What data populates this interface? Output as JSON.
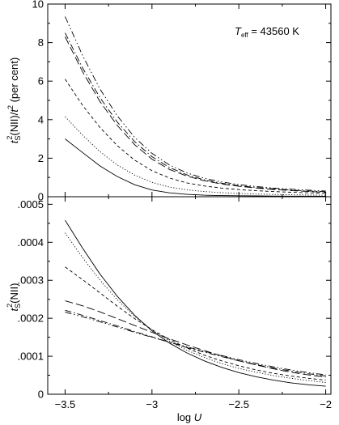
{
  "chart_data": [
    {
      "type": "line",
      "panel": "top",
      "ylabel_main": "t",
      "ylabel_sub": "S",
      "ylabel_sup": "2",
      "ylabel_mid": "(NII)/",
      "ylabel_t": "t",
      "ylabel_sup2": "2",
      "ylabel_unit": " (per cent)",
      "annotation_T": "T",
      "annotation_sub": "eff",
      "annotation_value": " = 43560 K",
      "xlim": [
        -3.6,
        -1.97
      ],
      "ylim": [
        0,
        10
      ],
      "yticks": [
        0,
        2,
        4,
        6,
        8,
        10
      ],
      "ytick_labels": [
        "0",
        "2",
        "4",
        "6",
        "8",
        "10"
      ],
      "grid": false,
      "series": [
        {
          "dash": "solid",
          "x": [
            -3.5,
            -3.4,
            -3.3,
            -3.2,
            -3.1,
            -3.0,
            -2.9,
            -2.8,
            -2.7,
            -2.6,
            -2.5,
            -2.4,
            -2.3,
            -2.2,
            -2.1,
            -2.0
          ],
          "y": [
            3.0,
            2.3,
            1.6,
            1.05,
            0.62,
            0.35,
            0.2,
            0.12,
            0.08,
            0.06,
            0.05,
            0.04,
            0.035,
            0.03,
            0.03,
            0.02
          ]
        },
        {
          "dash": "dotted",
          "x": [
            -3.5,
            -3.4,
            -3.3,
            -3.2,
            -3.1,
            -3.0,
            -2.9,
            -2.8,
            -2.7,
            -2.6,
            -2.5,
            -2.4,
            -2.3,
            -2.2,
            -2.1,
            -2.0
          ],
          "y": [
            4.15,
            3.2,
            2.35,
            1.65,
            1.12,
            0.75,
            0.5,
            0.36,
            0.27,
            0.21,
            0.17,
            0.14,
            0.12,
            0.1,
            0.09,
            0.08
          ]
        },
        {
          "dash": "short-dash",
          "x": [
            -3.5,
            -3.4,
            -3.3,
            -3.2,
            -3.1,
            -3.0,
            -2.9,
            -2.8,
            -2.7,
            -2.6,
            -2.5,
            -2.4,
            -2.3,
            -2.2,
            -2.1,
            -2.0
          ],
          "y": [
            6.1,
            4.75,
            3.6,
            2.65,
            1.9,
            1.35,
            0.97,
            0.72,
            0.56,
            0.45,
            0.37,
            0.31,
            0.27,
            0.23,
            0.2,
            0.18
          ]
        },
        {
          "dash": "long-dash",
          "x": [
            -3.5,
            -3.4,
            -3.3,
            -3.2,
            -3.1,
            -3.0,
            -2.9,
            -2.8,
            -2.7,
            -2.6,
            -2.5,
            -2.4,
            -2.3,
            -2.2,
            -2.1,
            -2.0
          ],
          "y": [
            8.3,
            6.5,
            4.95,
            3.7,
            2.7,
            1.95,
            1.42,
            1.07,
            0.83,
            0.66,
            0.54,
            0.45,
            0.38,
            0.32,
            0.27,
            0.23
          ]
        },
        {
          "dash": "dash-dot",
          "x": [
            -3.5,
            -3.4,
            -3.3,
            -3.2,
            -3.1,
            -3.0,
            -2.9,
            -2.8,
            -2.7,
            -2.6,
            -2.5,
            -2.4,
            -2.3,
            -2.2,
            -2.1,
            -2.0
          ],
          "y": [
            8.5,
            6.7,
            5.15,
            3.88,
            2.86,
            2.08,
            1.52,
            1.14,
            0.88,
            0.7,
            0.57,
            0.48,
            0.41,
            0.35,
            0.3,
            0.26
          ]
        },
        {
          "dash": "dash-dot-dot",
          "x": [
            -3.5,
            -3.4,
            -3.3,
            -3.2,
            -3.1,
            -3.0,
            -2.9,
            -2.8,
            -2.7,
            -2.6,
            -2.5,
            -2.4,
            -2.3,
            -2.2,
            -2.1,
            -2.0
          ],
          "y": [
            9.35,
            7.35,
            5.6,
            4.2,
            3.08,
            2.25,
            1.65,
            1.24,
            0.96,
            0.77,
            0.63,
            0.53,
            0.45,
            0.39,
            0.34,
            0.3
          ]
        }
      ]
    },
    {
      "type": "line",
      "panel": "bottom",
      "ylabel_main": "t",
      "ylabel_sub": "S",
      "ylabel_sup": "2",
      "ylabel_rest": "(NII)",
      "xlabel_main": "log ",
      "xlabel_var": "U",
      "xlim": [
        -3.6,
        -1.97
      ],
      "ylim": [
        0,
        0.00052
      ],
      "xticks": [
        -3.5,
        -3,
        -2.5,
        -2
      ],
      "xtick_labels": [
        "−3.5",
        "−3",
        "−2.5",
        "−2"
      ],
      "yticks": [
        0,
        0.0001,
        0.0002,
        0.0003,
        0.0004,
        0.0005
      ],
      "ytick_labels": [
        "0",
        ".0001",
        ".0002",
        ".0003",
        ".0004",
        ".0005"
      ],
      "grid": false,
      "series": [
        {
          "dash": "solid",
          "x": [
            -3.5,
            -3.4,
            -3.3,
            -3.2,
            -3.1,
            -3.0,
            -2.9,
            -2.8,
            -2.7,
            -2.6,
            -2.5,
            -2.4,
            -2.3,
            -2.2,
            -2.1,
            -2.0
          ],
          "y": [
            0.000458,
            0.000385,
            0.000317,
            0.000258,
            0.000208,
            0.000167,
            0.000135,
            0.000109,
            8.8e-05,
            7.1e-05,
            5.7e-05,
            4.6e-05,
            3.7e-05,
            3e-05,
            2.5e-05,
            2.1e-05
          ]
        },
        {
          "dash": "dotted",
          "x": [
            -3.5,
            -3.4,
            -3.3,
            -3.2,
            -3.1,
            -3.0,
            -2.9,
            -2.8,
            -2.7,
            -2.6,
            -2.5,
            -2.4,
            -2.3,
            -2.2,
            -2.1,
            -2.0
          ],
          "y": [
            0.000425,
            0.00036,
            0.000301,
            0.000249,
            0.000205,
            0.000169,
            0.00014,
            0.000116,
            9.7e-05,
            8.1e-05,
            6.8e-05,
            5.8e-05,
            4.9e-05,
            4.2e-05,
            3.6e-05,
            3.1e-05
          ]
        },
        {
          "dash": "short-dash",
          "x": [
            -3.5,
            -3.4,
            -3.3,
            -3.2,
            -3.1,
            -3.0,
            -2.9,
            -2.8,
            -2.7,
            -2.6,
            -2.5,
            -2.4,
            -2.3,
            -2.2,
            -2.1,
            -2.0
          ],
          "y": [
            0.000335,
            0.000302,
            0.000267,
            0.000232,
            0.000199,
            0.00017,
            0.000144,
            0.000122,
            0.000103,
            8.8e-05,
            7.5e-05,
            6.4e-05,
            5.5e-05,
            4.8e-05,
            4.2e-05,
            3.7e-05
          ]
        },
        {
          "dash": "long-dash",
          "x": [
            -3.5,
            -3.4,
            -3.3,
            -3.2,
            -3.1,
            -3.0,
            -2.9,
            -2.8,
            -2.7,
            -2.6,
            -2.5,
            -2.4,
            -2.3,
            -2.2,
            -2.1,
            -2.0
          ],
          "y": [
            0.000246,
            0.000233,
            0.000217,
            0.000199,
            0.000181,
            0.000163,
            0.000146,
            0.00013,
            0.000115,
            0.000101,
            8.8e-05,
            7.7e-05,
            6.7e-05,
            5.8e-05,
            5.1e-05,
            4.5e-05
          ]
        },
        {
          "dash": "dash-dot",
          "x": [
            -3.5,
            -3.4,
            -3.3,
            -3.2,
            -3.1,
            -3.0,
            -2.9,
            -2.8,
            -2.7,
            -2.6,
            -2.5,
            -2.4,
            -2.3,
            -2.2,
            -2.1,
            -2.0
          ],
          "y": [
            0.000221,
            0.000208,
            0.000194,
            0.00018,
            0.000165,
            0.000151,
            0.000137,
            0.000123,
            0.000111,
            9.9e-05,
            8.8e-05,
            7.8e-05,
            6.9e-05,
            6.1e-05,
            5.4e-05,
            4.8e-05
          ]
        },
        {
          "dash": "dash-dot-dot",
          "x": [
            -3.5,
            -3.4,
            -3.3,
            -3.2,
            -3.1,
            -3.0,
            -2.9,
            -2.8,
            -2.7,
            -2.6,
            -2.5,
            -2.4,
            -2.3,
            -2.2,
            -2.1,
            -2.0
          ],
          "y": [
            0.000216,
            0.000204,
            0.000191,
            0.000177,
            0.000163,
            0.00015,
            0.000137,
            0.000125,
            0.000113,
            0.000102,
            9.1e-05,
            8.1e-05,
            7.2e-05,
            6.4e-05,
            5.7e-05,
            5.1e-05
          ]
        }
      ]
    }
  ]
}
